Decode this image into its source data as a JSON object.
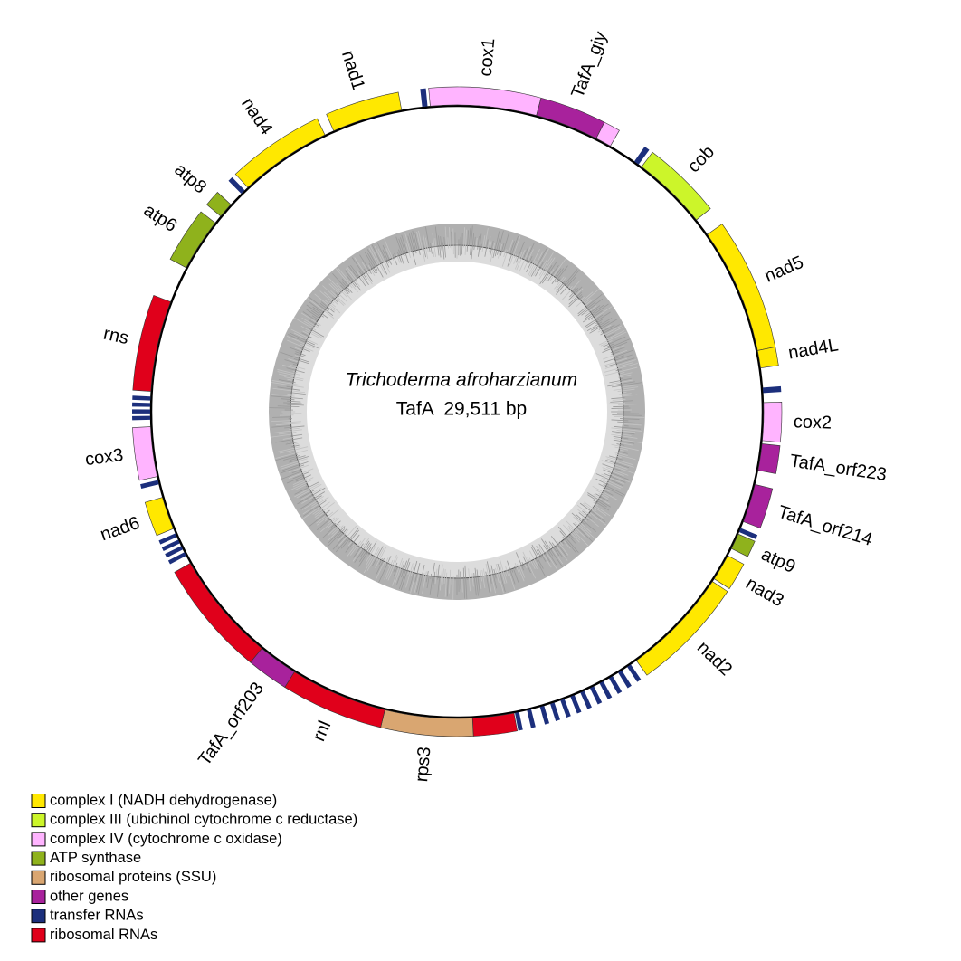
{
  "center": {
    "species": "Trichoderma afroharzianum",
    "size": {
      "value": 29511,
      "label": "TafA  29,511 bp"
    }
  },
  "legend": [
    {
      "label": "complex I (NADH dehydrogenase)",
      "color": "#ffe800"
    },
    {
      "label": "complex III (ubichinol cytochrome c reductase)",
      "color": "#ccf52a"
    },
    {
      "label": "complex IV (cytochrome c oxidase)",
      "color": "#ffb4ff"
    },
    {
      "label": "ATP synthase",
      "color": "#8fb21c"
    },
    {
      "label": "ribosomal proteins (SSU)",
      "color": "#d9a671"
    },
    {
      "label": "other genes",
      "color": "#a8229c"
    },
    {
      "label": "transfer RNAs",
      "color": "#1c2f7c"
    },
    {
      "label": "ribosomal RNAs",
      "color": "#e0001b"
    }
  ],
  "genes": [
    {
      "group": 6,
      "start": 28978,
      "end": 29060
    },
    {
      "label": "cox1",
      "group": 2,
      "start": 29101,
      "end": 1230
    },
    {
      "label": "TafA_giy",
      "group": 5,
      "start": 1230,
      "end": 2213
    },
    {
      "group": 2,
      "start": 2213,
      "end": 2459
    },
    {
      "group": 6,
      "start": 2894,
      "end": 2976
    },
    {
      "label": "cob",
      "group": 1,
      "start": 3033,
      "end": 4205
    },
    {
      "label": "nad5",
      "group": 0,
      "start": 4484,
      "end": 6435
    },
    {
      "label": "nad4L",
      "group": 0,
      "start": 6435,
      "end": 6706
    },
    {
      "group": 6,
      "start": 7009,
      "end": 7091
    },
    {
      "label": "cox2",
      "group": 2,
      "start": 7238,
      "end": 7820
    },
    {
      "label": "TafA_orf223",
      "group": 5,
      "start": 7870,
      "end": 8280
    },
    {
      "label": "TafA_orf214",
      "group": 5,
      "start": 8501,
      "end": 9099
    },
    {
      "group": 6,
      "start": 9206,
      "end": 9271
    },
    {
      "label": "atp9",
      "group": 3,
      "start": 9304,
      "end": 9550
    },
    {
      "label": "nad3",
      "group": 0,
      "start": 9673,
      "end": 10083
    },
    {
      "label": "nad2",
      "group": 0,
      "start": 10132,
      "end": 11821
    },
    {
      "group": 6,
      "start": 11927,
      "end": 11993
    },
    {
      "group": 6,
      "start": 12091,
      "end": 12157
    },
    {
      "group": 6,
      "start": 12255,
      "end": 12321
    },
    {
      "group": 6,
      "start": 12419,
      "end": 12485
    },
    {
      "group": 6,
      "start": 12583,
      "end": 12649
    },
    {
      "group": 6,
      "start": 12746,
      "end": 12812
    },
    {
      "group": 6,
      "start": 12910,
      "end": 12976
    },
    {
      "group": 6,
      "start": 13074,
      "end": 13140
    },
    {
      "group": 6,
      "start": 13238,
      "end": 13304
    },
    {
      "group": 6,
      "start": 13402,
      "end": 13468
    },
    {
      "group": 6,
      "start": 13608,
      "end": 13674
    },
    {
      "group": 6,
      "start": 13797,
      "end": 13863
    },
    {
      "group": 7,
      "start": 13878,
      "end": 14518
    },
    {
      "label": "rps3",
      "group": 4,
      "start": 14518,
      "end": 15870
    },
    {
      "label": "rnl",
      "group": 7,
      "start": 15870,
      "end": 17379
    },
    {
      "label": "TafA_orf203",
      "group": 5,
      "start": 17379,
      "end": 17993
    },
    {
      "group": 7,
      "start": 17993,
      "end": 19707
    },
    {
      "group": 6,
      "start": 19838,
      "end": 19898
    },
    {
      "group": 6,
      "start": 19945,
      "end": 20005
    },
    {
      "group": 6,
      "start": 20051,
      "end": 20111
    },
    {
      "group": 6,
      "start": 20158,
      "end": 20218
    },
    {
      "label": "nad6",
      "group": 0,
      "start": 20297,
      "end": 20805
    },
    {
      "group": 6,
      "start": 21010,
      "end": 21076
    },
    {
      "label": "cox3",
      "group": 2,
      "start": 21133,
      "end": 21904
    },
    {
      "group": 6,
      "start": 22010,
      "end": 22070
    },
    {
      "group": 6,
      "start": 22108,
      "end": 22168
    },
    {
      "group": 6,
      "start": 22207,
      "end": 22267
    },
    {
      "group": 6,
      "start": 22305,
      "end": 22365
    },
    {
      "label": "rns",
      "group": 7,
      "start": 22445,
      "end": 23855
    },
    {
      "label": "atp6",
      "group": 3,
      "start": 24429,
      "end": 25248
    },
    {
      "label": "atp8",
      "group": 3,
      "start": 25380,
      "end": 25617
    },
    {
      "group": 6,
      "start": 25847,
      "end": 25921
    },
    {
      "label": "nad4",
      "group": 0,
      "start": 25986,
      "end": 27420
    },
    {
      "label": "nad1",
      "group": 0,
      "start": 27568,
      "end": 28658
    }
  ]
}
